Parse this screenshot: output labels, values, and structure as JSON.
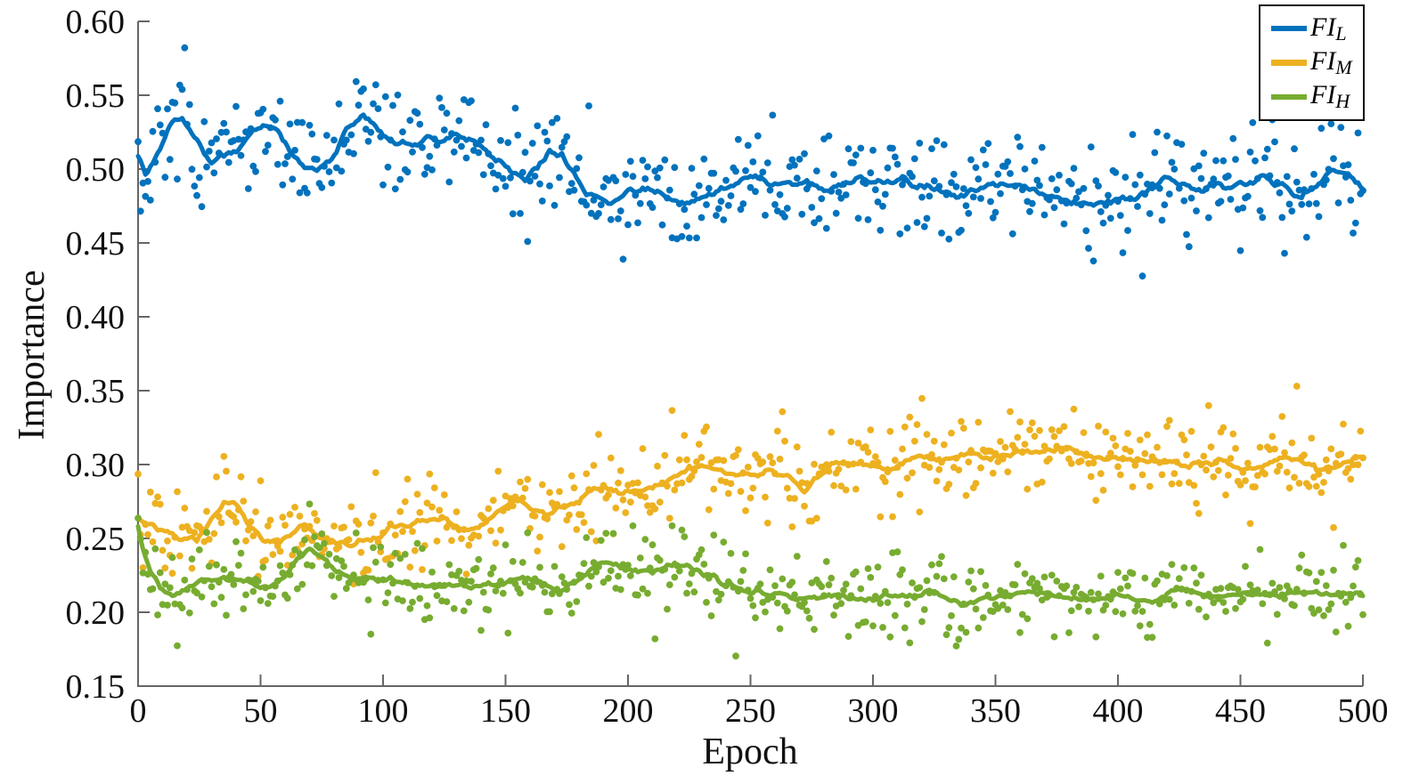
{
  "chart_data": {
    "type": "scatter",
    "title": "",
    "xlabel": "Epoch",
    "ylabel": "Importance",
    "xlim": [
      0,
      500
    ],
    "ylim": [
      0.15,
      0.6
    ],
    "xtick_values": [
      0,
      50,
      100,
      150,
      200,
      250,
      300,
      350,
      400,
      450,
      500
    ],
    "xtick_labels": [
      "0",
      "50",
      "100",
      "150",
      "200",
      "250",
      "300",
      "350",
      "400",
      "450",
      "500"
    ],
    "ytick_values": [
      0.15,
      0.2,
      0.25,
      0.3,
      0.35,
      0.4,
      0.45,
      0.5,
      0.55,
      0.6
    ],
    "ytick_labels": [
      "0.15",
      "0.20",
      "0.25",
      "0.30",
      "0.35",
      "0.40",
      "0.45",
      "0.50",
      "0.55",
      "0.60"
    ],
    "n_points": 500,
    "smoothing_window": 15,
    "legend_position": "top-right",
    "grid": false,
    "series": [
      {
        "name": "FI_L",
        "label_main": "FI",
        "label_sub": "L",
        "color": "#0072BD",
        "noise_sigma": 0.019,
        "seed": 101,
        "trend": [
          [
            0,
            0.515
          ],
          [
            3,
            0.498
          ],
          [
            8,
            0.512
          ],
          [
            15,
            0.53
          ],
          [
            18,
            0.537
          ],
          [
            25,
            0.52
          ],
          [
            30,
            0.505
          ],
          [
            35,
            0.502
          ],
          [
            40,
            0.508
          ],
          [
            47,
            0.53
          ],
          [
            52,
            0.536
          ],
          [
            57,
            0.53
          ],
          [
            63,
            0.51
          ],
          [
            68,
            0.498
          ],
          [
            73,
            0.497
          ],
          [
            78,
            0.505
          ],
          [
            85,
            0.528
          ],
          [
            92,
            0.534
          ],
          [
            97,
            0.525
          ],
          [
            103,
            0.518
          ],
          [
            110,
            0.517
          ],
          [
            118,
            0.521
          ],
          [
            125,
            0.519
          ],
          [
            133,
            0.518
          ],
          [
            140,
            0.515
          ],
          [
            147,
            0.508
          ],
          [
            153,
            0.499
          ],
          [
            158,
            0.492
          ],
          [
            163,
            0.503
          ],
          [
            168,
            0.512
          ],
          [
            173,
            0.51
          ],
          [
            178,
            0.495
          ],
          [
            183,
            0.482
          ],
          [
            190,
            0.477
          ],
          [
            196,
            0.48
          ],
          [
            200,
            0.488
          ],
          [
            205,
            0.486
          ],
          [
            212,
            0.483
          ],
          [
            220,
            0.482
          ],
          [
            228,
            0.483
          ],
          [
            235,
            0.486
          ],
          [
            243,
            0.49
          ],
          [
            250,
            0.492
          ],
          [
            258,
            0.49
          ],
          [
            265,
            0.492
          ],
          [
            272,
            0.493
          ],
          [
            280,
            0.487
          ],
          [
            287,
            0.486
          ],
          [
            295,
            0.494
          ],
          [
            303,
            0.493
          ],
          [
            312,
            0.495
          ],
          [
            320,
            0.489
          ],
          [
            328,
            0.485
          ],
          [
            335,
            0.482
          ],
          [
            343,
            0.484
          ],
          [
            350,
            0.485
          ],
          [
            358,
            0.484
          ],
          [
            365,
            0.48
          ],
          [
            373,
            0.476
          ],
          [
            380,
            0.473
          ],
          [
            388,
            0.475
          ],
          [
            395,
            0.479
          ],
          [
            403,
            0.481
          ],
          [
            410,
            0.483
          ],
          [
            417,
            0.49
          ],
          [
            423,
            0.492
          ],
          [
            430,
            0.487
          ],
          [
            438,
            0.486
          ],
          [
            445,
            0.487
          ],
          [
            452,
            0.489
          ],
          [
            460,
            0.49
          ],
          [
            468,
            0.487
          ],
          [
            475,
            0.484
          ],
          [
            482,
            0.487
          ],
          [
            488,
            0.494
          ],
          [
            494,
            0.494
          ],
          [
            500,
            0.49
          ]
        ]
      },
      {
        "name": "FI_M",
        "label_main": "FI",
        "label_sub": "M",
        "color": "#EDB120",
        "noise_sigma": 0.016,
        "seed": 202,
        "trend": [
          [
            0,
            0.262
          ],
          [
            2,
            0.258
          ],
          [
            6,
            0.26
          ],
          [
            12,
            0.254
          ],
          [
            18,
            0.249
          ],
          [
            24,
            0.248
          ],
          [
            30,
            0.262
          ],
          [
            35,
            0.274
          ],
          [
            40,
            0.272
          ],
          [
            46,
            0.257
          ],
          [
            52,
            0.247
          ],
          [
            58,
            0.248
          ],
          [
            64,
            0.256
          ],
          [
            68,
            0.262
          ],
          [
            74,
            0.252
          ],
          [
            80,
            0.246
          ],
          [
            86,
            0.244
          ],
          [
            92,
            0.248
          ],
          [
            100,
            0.257
          ],
          [
            106,
            0.264
          ],
          [
            112,
            0.261
          ],
          [
            120,
            0.261
          ],
          [
            128,
            0.262
          ],
          [
            136,
            0.262
          ],
          [
            144,
            0.266
          ],
          [
            152,
            0.272
          ],
          [
            156,
            0.276
          ],
          [
            161,
            0.269
          ],
          [
            167,
            0.268
          ],
          [
            173,
            0.273
          ],
          [
            180,
            0.28
          ],
          [
            186,
            0.288
          ],
          [
            191,
            0.287
          ],
          [
            197,
            0.282
          ],
          [
            203,
            0.284
          ],
          [
            210,
            0.286
          ],
          [
            217,
            0.288
          ],
          [
            224,
            0.291
          ],
          [
            231,
            0.295
          ],
          [
            238,
            0.294
          ],
          [
            245,
            0.294
          ],
          [
            252,
            0.294
          ],
          [
            259,
            0.291
          ],
          [
            266,
            0.288
          ],
          [
            272,
            0.286
          ],
          [
            278,
            0.297
          ],
          [
            283,
            0.305
          ],
          [
            288,
            0.303
          ],
          [
            294,
            0.298
          ],
          [
            300,
            0.297
          ],
          [
            308,
            0.297
          ],
          [
            315,
            0.3
          ],
          [
            322,
            0.302
          ],
          [
            329,
            0.304
          ],
          [
            336,
            0.31
          ],
          [
            342,
            0.309
          ],
          [
            348,
            0.303
          ],
          [
            355,
            0.301
          ],
          [
            362,
            0.304
          ],
          [
            370,
            0.306
          ],
          [
            377,
            0.308
          ],
          [
            384,
            0.308
          ],
          [
            391,
            0.306
          ],
          [
            398,
            0.304
          ],
          [
            405,
            0.301
          ],
          [
            412,
            0.3
          ],
          [
            419,
            0.298
          ],
          [
            426,
            0.298
          ],
          [
            433,
            0.301
          ],
          [
            440,
            0.3
          ],
          [
            447,
            0.3
          ],
          [
            454,
            0.301
          ],
          [
            461,
            0.3
          ],
          [
            468,
            0.301
          ],
          [
            475,
            0.303
          ],
          [
            482,
            0.301
          ],
          [
            489,
            0.301
          ],
          [
            495,
            0.303
          ],
          [
            500,
            0.305
          ]
        ]
      },
      {
        "name": "FI_H",
        "label_main": "FI",
        "label_sub": "H",
        "color": "#77AC30",
        "noise_sigma": 0.014,
        "seed": 303,
        "trend": [
          [
            0,
            0.262
          ],
          [
            2,
            0.247
          ],
          [
            5,
            0.232
          ],
          [
            9,
            0.221
          ],
          [
            14,
            0.215
          ],
          [
            20,
            0.218
          ],
          [
            26,
            0.221
          ],
          [
            33,
            0.221
          ],
          [
            40,
            0.222
          ],
          [
            47,
            0.219
          ],
          [
            53,
            0.219
          ],
          [
            59,
            0.227
          ],
          [
            65,
            0.238
          ],
          [
            70,
            0.241
          ],
          [
            75,
            0.234
          ],
          [
            81,
            0.225
          ],
          [
            88,
            0.222
          ],
          [
            95,
            0.223
          ],
          [
            102,
            0.221
          ],
          [
            110,
            0.219
          ],
          [
            118,
            0.221
          ],
          [
            126,
            0.221
          ],
          [
            134,
            0.218
          ],
          [
            142,
            0.221
          ],
          [
            150,
            0.221
          ],
          [
            157,
            0.223
          ],
          [
            164,
            0.221
          ],
          [
            171,
            0.217
          ],
          [
            178,
            0.221
          ],
          [
            185,
            0.229
          ],
          [
            191,
            0.235
          ],
          [
            198,
            0.231
          ],
          [
            205,
            0.23
          ],
          [
            212,
            0.232
          ],
          [
            219,
            0.235
          ],
          [
            226,
            0.23
          ],
          [
            233,
            0.226
          ],
          [
            240,
            0.219
          ],
          [
            247,
            0.215
          ],
          [
            254,
            0.215
          ],
          [
            261,
            0.214
          ],
          [
            268,
            0.209
          ],
          [
            275,
            0.207
          ],
          [
            282,
            0.209
          ],
          [
            289,
            0.21
          ],
          [
            296,
            0.208
          ],
          [
            303,
            0.21
          ],
          [
            310,
            0.212
          ],
          [
            317,
            0.211
          ],
          [
            324,
            0.213
          ],
          [
            331,
            0.211
          ],
          [
            338,
            0.21
          ],
          [
            345,
            0.212
          ],
          [
            352,
            0.213
          ],
          [
            359,
            0.214
          ],
          [
            366,
            0.213
          ],
          [
            373,
            0.211
          ],
          [
            380,
            0.21
          ],
          [
            387,
            0.21
          ],
          [
            394,
            0.21
          ],
          [
            401,
            0.21
          ],
          [
            408,
            0.209
          ],
          [
            415,
            0.208
          ],
          [
            422,
            0.211
          ],
          [
            429,
            0.212
          ],
          [
            436,
            0.21
          ],
          [
            443,
            0.211
          ],
          [
            450,
            0.21
          ],
          [
            457,
            0.21
          ],
          [
            464,
            0.211
          ],
          [
            471,
            0.21
          ],
          [
            478,
            0.211
          ],
          [
            485,
            0.213
          ],
          [
            492,
            0.212
          ],
          [
            500,
            0.21
          ]
        ]
      }
    ]
  }
}
